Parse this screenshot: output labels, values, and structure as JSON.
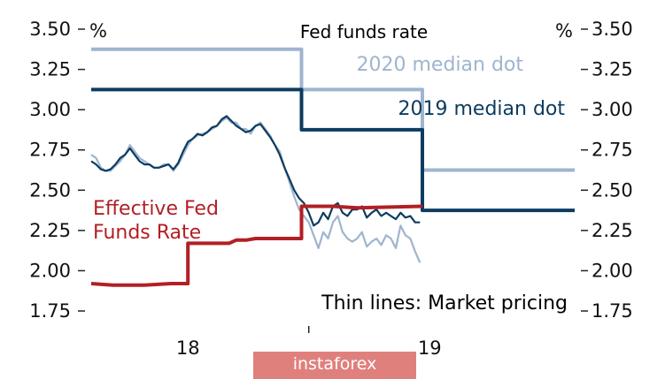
{
  "chart_data": {
    "type": "line",
    "title": "Fed funds rate",
    "ylabel_left": "%",
    "ylabel_right": "%",
    "ylim": [
      1.75,
      3.5
    ],
    "yticks": [
      "3.50",
      "3.25",
      "3.00",
      "2.75",
      "2.50",
      "2.25",
      "2.00",
      "1.75"
    ],
    "xlim": [
      2017.6,
      2019.6
    ],
    "xticks": [
      {
        "label": "18",
        "x": 2018.0
      },
      {
        "label": "19",
        "x": 2019.0
      }
    ],
    "grid": false,
    "colors": {
      "dot_2020": "#9fb4cf",
      "dot_2019": "#0c3c60",
      "effective": "#b21f24",
      "text": "#111111"
    },
    "annotations": {
      "dot_2020_label": "2020 median dot",
      "dot_2019_label": "2019 median dot",
      "effective_line1": "Effective Fed",
      "effective_line2": "Funds Rate",
      "thin_lines_note": "Thin lines: Market pricing"
    },
    "series": [
      {
        "name": "2020 median dot",
        "style": "thick-step",
        "x": [
          2017.6,
          2018.47,
          2018.47,
          2018.97,
          2018.97,
          2019.6
        ],
        "y": [
          3.375,
          3.375,
          3.125,
          3.125,
          2.625,
          2.625
        ]
      },
      {
        "name": "2019 median dot",
        "style": "thick-step",
        "x": [
          2017.6,
          2018.47,
          2018.47,
          2018.97,
          2018.97,
          2019.6
        ],
        "y": [
          3.125,
          3.125,
          2.875,
          2.875,
          2.375,
          2.375
        ]
      },
      {
        "name": "Effective Fed Funds Rate",
        "style": "thick-step",
        "x": [
          2017.6,
          2017.69,
          2017.73,
          2017.82,
          2017.93,
          2017.97,
          2018.0,
          2018.0,
          2018.17,
          2018.2,
          2018.24,
          2018.28,
          2018.4,
          2018.45,
          2018.47,
          2018.47,
          2018.6,
          2018.7,
          2018.97
        ],
        "y": [
          1.92,
          1.91,
          1.91,
          1.91,
          1.92,
          1.92,
          1.92,
          2.17,
          2.17,
          2.19,
          2.19,
          2.2,
          2.2,
          2.2,
          2.2,
          2.4,
          2.4,
          2.39,
          2.4
        ]
      },
      {
        "name": "2020 market pricing",
        "style": "thin",
        "x": [
          2017.6,
          2017.62,
          2017.64,
          2017.66,
          2017.68,
          2017.7,
          2017.72,
          2017.74,
          2017.76,
          2017.78,
          2017.8,
          2017.82,
          2017.84,
          2017.86,
          2017.88,
          2017.9,
          2017.92,
          2017.94,
          2017.96,
          2017.98,
          2018.0,
          2018.02,
          2018.04,
          2018.06,
          2018.08,
          2018.1,
          2018.12,
          2018.14,
          2018.16,
          2018.18,
          2018.2,
          2018.22,
          2018.24,
          2018.26,
          2018.28,
          2018.3,
          2018.32,
          2018.34,
          2018.36,
          2018.38,
          2018.4,
          2018.42,
          2018.44,
          2018.46,
          2018.48,
          2018.5,
          2018.52,
          2018.54,
          2018.56,
          2018.58,
          2018.6,
          2018.62,
          2018.64,
          2018.66,
          2018.68,
          2018.7,
          2018.72,
          2018.74,
          2018.76,
          2018.78,
          2018.8,
          2018.82,
          2018.84,
          2018.86,
          2018.88,
          2018.9,
          2018.92,
          2018.94,
          2018.96
        ],
        "y": [
          2.72,
          2.7,
          2.64,
          2.62,
          2.62,
          2.65,
          2.68,
          2.72,
          2.78,
          2.74,
          2.7,
          2.68,
          2.66,
          2.64,
          2.64,
          2.66,
          2.66,
          2.62,
          2.66,
          2.72,
          2.78,
          2.82,
          2.84,
          2.85,
          2.86,
          2.88,
          2.9,
          2.93,
          2.95,
          2.92,
          2.92,
          2.88,
          2.88,
          2.85,
          2.9,
          2.92,
          2.88,
          2.84,
          2.78,
          2.74,
          2.64,
          2.55,
          2.46,
          2.38,
          2.34,
          2.3,
          2.22,
          2.14,
          2.24,
          2.2,
          2.3,
          2.34,
          2.24,
          2.2,
          2.18,
          2.2,
          2.24,
          2.15,
          2.18,
          2.2,
          2.16,
          2.22,
          2.2,
          2.14,
          2.28,
          2.22,
          2.2,
          2.12,
          2.05
        ]
      },
      {
        "name": "2019 market pricing",
        "style": "thin",
        "x": [
          2017.6,
          2017.62,
          2017.64,
          2017.66,
          2017.68,
          2017.7,
          2017.72,
          2017.74,
          2017.76,
          2017.78,
          2017.8,
          2017.82,
          2017.84,
          2017.86,
          2017.88,
          2017.9,
          2017.92,
          2017.94,
          2017.96,
          2017.98,
          2018.0,
          2018.02,
          2018.04,
          2018.06,
          2018.08,
          2018.1,
          2018.12,
          2018.14,
          2018.16,
          2018.18,
          2018.2,
          2018.22,
          2018.24,
          2018.26,
          2018.28,
          2018.3,
          2018.32,
          2018.34,
          2018.36,
          2018.38,
          2018.4,
          2018.42,
          2018.44,
          2018.46,
          2018.48,
          2018.5,
          2018.52,
          2018.54,
          2018.56,
          2018.58,
          2018.6,
          2018.62,
          2018.64,
          2018.66,
          2018.68,
          2018.7,
          2018.72,
          2018.74,
          2018.76,
          2018.78,
          2018.8,
          2018.82,
          2018.84,
          2018.86,
          2018.88,
          2018.9,
          2018.92,
          2018.94,
          2018.96
        ],
        "y": [
          2.68,
          2.66,
          2.63,
          2.62,
          2.63,
          2.66,
          2.7,
          2.72,
          2.76,
          2.72,
          2.68,
          2.66,
          2.66,
          2.64,
          2.64,
          2.65,
          2.66,
          2.63,
          2.67,
          2.74,
          2.8,
          2.82,
          2.85,
          2.84,
          2.86,
          2.89,
          2.9,
          2.94,
          2.96,
          2.93,
          2.9,
          2.88,
          2.86,
          2.87,
          2.9,
          2.91,
          2.87,
          2.83,
          2.78,
          2.72,
          2.64,
          2.57,
          2.5,
          2.45,
          2.42,
          2.36,
          2.28,
          2.3,
          2.36,
          2.32,
          2.4,
          2.42,
          2.36,
          2.34,
          2.38,
          2.38,
          2.4,
          2.33,
          2.36,
          2.38,
          2.34,
          2.36,
          2.34,
          2.32,
          2.36,
          2.33,
          2.34,
          2.3,
          2.3
        ]
      }
    ]
  },
  "watermark": "instaforex"
}
